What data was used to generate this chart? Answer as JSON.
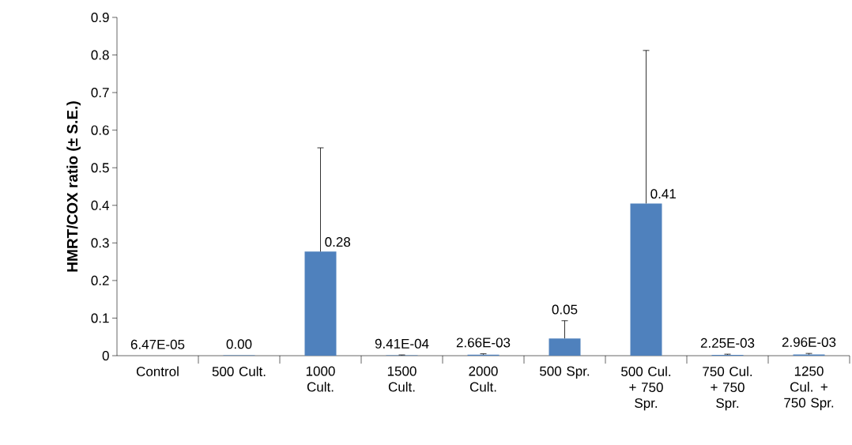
{
  "chart_data": {
    "type": "bar",
    "ylabel": "HMRT/COX ratio (± S.E.)",
    "categories": [
      "Control",
      "500 Cult.",
      "1000 Cult.",
      "1500 Cult.",
      "2000 Cult.",
      "500 Spr.",
      "500 Cul. + 750 Spr.",
      "750 Cul. + 750 Spr.",
      "1250 Cul. + 750 Spr."
    ],
    "values": [
      6.47e-05,
      0.001,
      0.277,
      0.000941,
      0.00266,
      0.046,
      0.405,
      0.00225,
      0.00296
    ],
    "errors": [
      null,
      null,
      [
        0.277,
        0.553
      ],
      [
        0.000941,
        0.002
      ],
      [
        0.00266,
        0.005
      ],
      [
        0.046,
        0.093
      ],
      [
        0.405,
        0.812
      ],
      [
        0.00225,
        0.004
      ],
      [
        0.00296,
        0.006
      ]
    ],
    "value_labels": [
      "6.47E-05",
      "0.00",
      "0.28",
      "9.41E-04",
      "2.66E-03",
      "0.05",
      "0.41",
      "2.25E-03",
      "2.96E-03"
    ],
    "color": "#4f81bd",
    "ylim": [
      0,
      0.9
    ],
    "yticks": [
      0,
      0.1,
      0.2,
      0.3,
      0.4,
      0.5,
      0.6,
      0.7,
      0.8,
      0.9
    ],
    "grid": false
  }
}
